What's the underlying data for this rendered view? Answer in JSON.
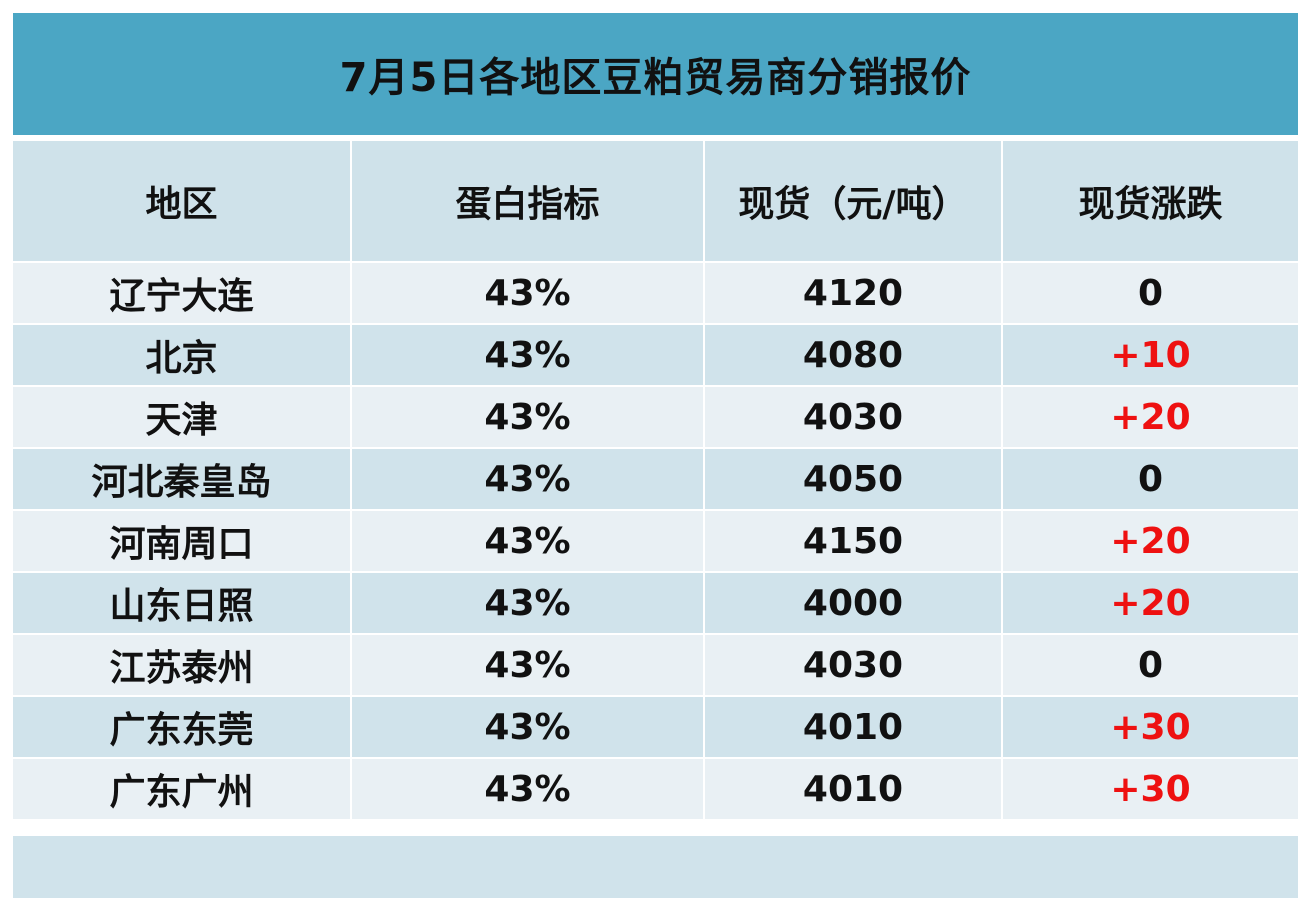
{
  "title": "7月5日各地区豆粕贸易商分销报价",
  "columns": [
    "地区",
    "蛋白指标",
    "现货（元/吨）",
    "现货涨跌"
  ],
  "rows": [
    {
      "region": "辽宁大连",
      "protein": "43%",
      "price": "4120",
      "change": "0"
    },
    {
      "region": "北京",
      "protein": "43%",
      "price": "4080",
      "change": "+10"
    },
    {
      "region": "天津",
      "protein": "43%",
      "price": "4030",
      "change": "+20"
    },
    {
      "region": "河北秦皇岛",
      "protein": "43%",
      "price": "4050",
      "change": "0"
    },
    {
      "region": "河南周口",
      "protein": "43%",
      "price": "4150",
      "change": "+20"
    },
    {
      "region": "山东日照",
      "protein": "43%",
      "price": "4000",
      "change": "+20"
    },
    {
      "region": "江苏泰州",
      "protein": "43%",
      "price": "4030",
      "change": "0"
    },
    {
      "region": "广东东莞",
      "protein": "43%",
      "price": "4010",
      "change": "+30"
    },
    {
      "region": "广东广州",
      "protein": "43%",
      "price": "4010",
      "change": "+30"
    }
  ],
  "colors": {
    "title_bg": "#4ba6c4",
    "header_bg": "#cfe2ea",
    "row_light": "#e9f0f4",
    "row_dark": "#d0e3eb",
    "rise": "#ee1111",
    "text": "#111111"
  }
}
